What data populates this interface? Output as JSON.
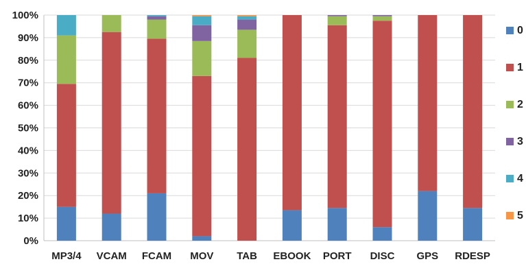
{
  "chart_data": {
    "type": "bar",
    "stacked": true,
    "categories": [
      "MP3/4",
      "VCAM",
      "FCAM",
      "MOV",
      "TAB",
      "EBOOK",
      "PORT",
      "DISC",
      "GPS",
      "RDESP"
    ],
    "yticks": [
      "0%",
      "10%",
      "20%",
      "30%",
      "40%",
      "50%",
      "60%",
      "70%",
      "80%",
      "90%",
      "100%"
    ],
    "ylim": [
      0,
      100
    ],
    "grid": true,
    "legend": "right",
    "series": [
      {
        "name": "0",
        "color": "#4f81bd",
        "values": [
          15,
          12,
          21,
          2,
          0,
          13.5,
          14.5,
          6,
          22,
          14.5
        ]
      },
      {
        "name": "1",
        "color": "#c0504d",
        "values": [
          54.5,
          80.5,
          68.5,
          71,
          81,
          86.5,
          81,
          91.5,
          78,
          85.5
        ]
      },
      {
        "name": "2",
        "color": "#9bbb59",
        "values": [
          21.5,
          7.5,
          8.5,
          15.5,
          12.5,
          0,
          4,
          2,
          0,
          0
        ]
      },
      {
        "name": "3",
        "color": "#8064a2",
        "values": [
          0,
          0,
          1.5,
          7,
          4.5,
          0,
          0.5,
          0.5,
          0,
          0
        ]
      },
      {
        "name": "4",
        "color": "#4bacc6",
        "values": [
          9,
          0,
          0.5,
          4,
          1.5,
          0,
          0,
          0,
          0,
          0
        ]
      },
      {
        "name": "5",
        "color": "#f79646",
        "values": [
          0,
          0,
          0,
          0.5,
          0.5,
          0,
          0,
          0,
          0,
          0
        ]
      }
    ]
  }
}
